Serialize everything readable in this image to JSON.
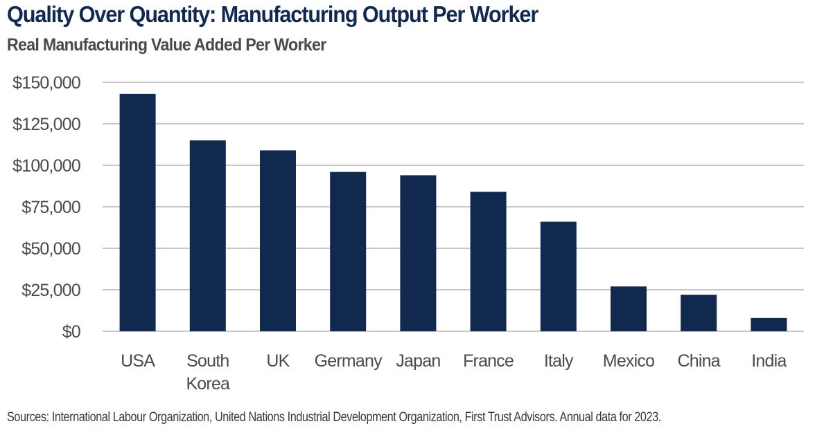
{
  "chart_data": {
    "type": "bar",
    "title": "Quality Over Quantity: Manufacturing Output Per Worker",
    "subtitle": "Real Manufacturing Value Added Per Worker",
    "categories": [
      "USA",
      "South Korea",
      "UK",
      "Germany",
      "Japan",
      "France",
      "Italy",
      "Mexico",
      "China",
      "India"
    ],
    "category_label_lines": [
      [
        "USA"
      ],
      [
        "South",
        "Korea"
      ],
      [
        "UK"
      ],
      [
        "Germany"
      ],
      [
        "Japan"
      ],
      [
        "France"
      ],
      [
        "Italy"
      ],
      [
        "Mexico"
      ],
      [
        "China"
      ],
      [
        "India"
      ]
    ],
    "values": [
      143000,
      115000,
      109000,
      96000,
      94000,
      84000,
      66000,
      27000,
      22000,
      8000
    ],
    "ylim": [
      0,
      150000
    ],
    "yticks": [
      0,
      25000,
      50000,
      75000,
      100000,
      125000,
      150000
    ],
    "ytick_labels": [
      "$0",
      "$25,000",
      "$50,000",
      "$75,000",
      "$100,000",
      "$125,000",
      "$150,000"
    ],
    "xlabel": "",
    "ylabel": "",
    "grid": true,
    "legend": "none",
    "bar_color": "#12294f",
    "grid_color": "#c8c8c8",
    "source": "Sources: International Labour Organization, United Nations Industrial Development Organization, First Trust Advisors. Annual data for 2023."
  }
}
